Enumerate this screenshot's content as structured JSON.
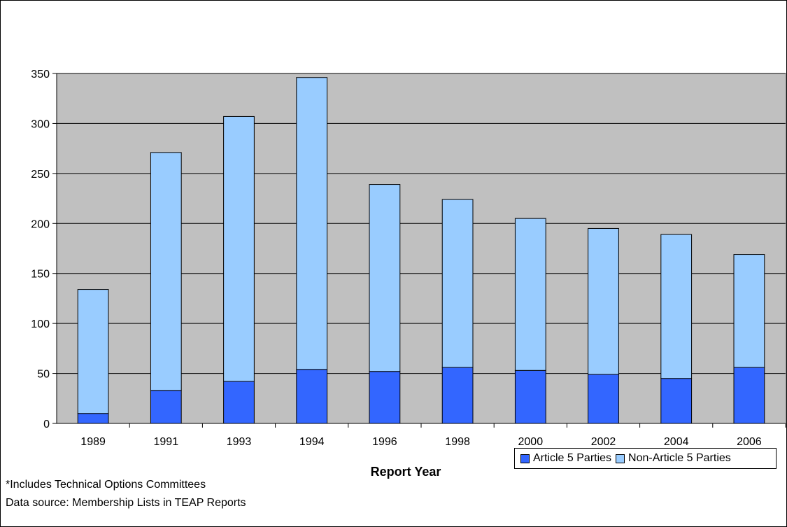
{
  "chart_data": {
    "type": "bar",
    "stacked": true,
    "categories": [
      "1989",
      "1991",
      "1993",
      "1994",
      "1996",
      "1998",
      "2000",
      "2002",
      "2004",
      "2006"
    ],
    "series": [
      {
        "name": "Article 5 Parties",
        "color": "#3366ff",
        "values": [
          10,
          33,
          42,
          54,
          52,
          56,
          53,
          49,
          45,
          56
        ]
      },
      {
        "name": "Non-Article 5 Parties",
        "color": "#99ccff",
        "values": [
          124,
          238,
          265,
          292,
          187,
          168,
          152,
          146,
          144,
          113
        ]
      }
    ],
    "xlabel": "Report Year",
    "ylabel": "",
    "ylim": [
      0,
      350
    ],
    "yticks": [
      "0",
      "50",
      "100",
      "150",
      "200",
      "250",
      "300",
      "350"
    ],
    "grid": true,
    "plot_background": "#c0c0c0",
    "legend_position": "bottom-right"
  },
  "notes": {
    "line1": "*Includes Technical Options Committees",
    "line2": "Data source: Membership Lists in TEAP Reports"
  }
}
